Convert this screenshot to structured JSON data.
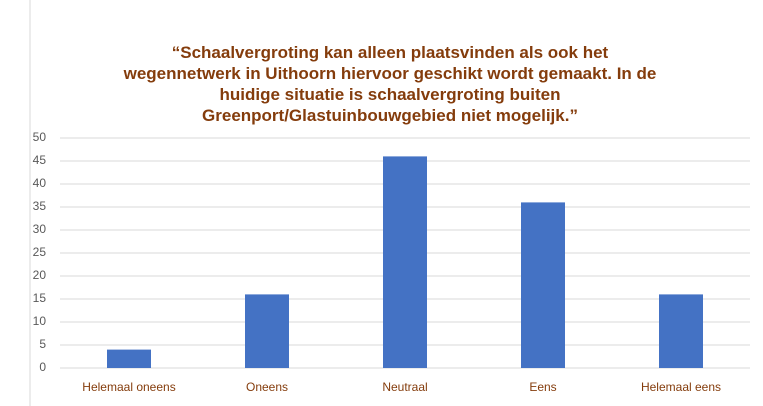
{
  "chart_data": {
    "type": "bar",
    "title": "“Schaalvergroting kan alleen plaatsvinden als ook het wegennetwerk in Uithoorn hiervoor geschikt wordt gemaakt. In de huidige situatie is schaalvergroting buiten Greenport/Glastuinbouwgebied niet mogelijk.”",
    "categories": [
      "Helemaal oneens",
      "Oneens",
      "Neutraal",
      "Eens",
      "Helemaal eens"
    ],
    "values": [
      4,
      16,
      46,
      36,
      16
    ],
    "color": "#4472c4",
    "ylim": [
      0,
      50
    ],
    "yticks": [
      0,
      5,
      10,
      15,
      20,
      25,
      30,
      35,
      40,
      45,
      50
    ],
    "grid": true
  }
}
